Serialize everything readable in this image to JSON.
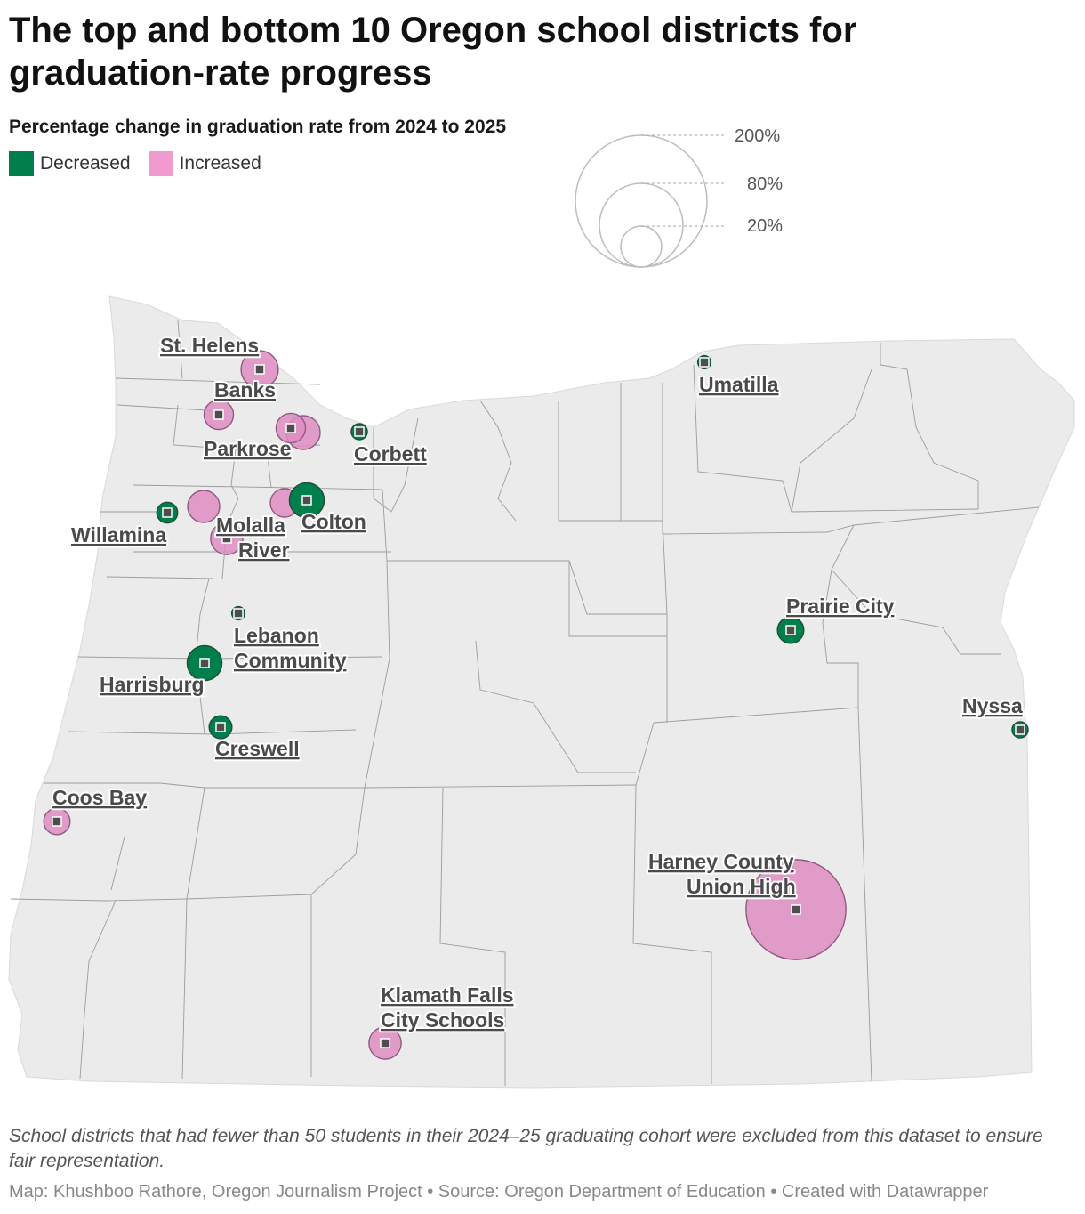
{
  "title": "The top and bottom 10 Oregon school districts for graduation-rate progress",
  "subtitle": "Percentage change in graduation rate from 2024 to 2025",
  "legend": {
    "decreased_label": "Decreased",
    "increased_label": "Increased",
    "decreased_color": "#007e4c",
    "increased_color": "#f09ad0"
  },
  "size_legend": {
    "ticks": [
      "200%",
      "80%",
      "20%"
    ],
    "values": [
      200,
      80,
      20
    ]
  },
  "colors": {
    "decreased": "#007e4c",
    "decreased_stroke": "#1c4f36",
    "increased": "#df8dc2",
    "increased_stroke": "#8f5a7e",
    "land": "#ebebeb",
    "county_lines": "#9c9c9c"
  },
  "districts": [
    {
      "name": "St. Helens",
      "change": "Increased",
      "magnitude_pct": 16
    },
    {
      "name": "Banks",
      "change": "Increased",
      "magnitude_pct": 10
    },
    {
      "name": "Parkrose",
      "change": "Increased",
      "magnitude_pct": 10
    },
    {
      "name": "Corbett",
      "change": "Decreased",
      "magnitude_pct": 3
    },
    {
      "name": "Umatilla",
      "change": "Decreased",
      "magnitude_pct": 2
    },
    {
      "name": "Willamina",
      "change": "Decreased",
      "magnitude_pct": 5
    },
    {
      "name": "Molalla River",
      "change": "Increased",
      "magnitude_pct": 12
    },
    {
      "name": "Colton",
      "change": "Decreased",
      "magnitude_pct": 14
    },
    {
      "name": "Lebanon Community",
      "change": "Decreased",
      "magnitude_pct": 2
    },
    {
      "name": "Harrisburg",
      "change": "Decreased",
      "magnitude_pct": 14
    },
    {
      "name": "Creswell",
      "change": "Decreased",
      "magnitude_pct": 6
    },
    {
      "name": "Prairie City",
      "change": "Decreased",
      "magnitude_pct": 8
    },
    {
      "name": "Nyssa",
      "change": "Decreased",
      "magnitude_pct": 3
    },
    {
      "name": "Coos Bay",
      "change": "Increased",
      "magnitude_pct": 8
    },
    {
      "name": "Harney County Union High",
      "change": "Increased",
      "magnitude_pct": 115
    },
    {
      "name": "Klamath Falls City Schools",
      "change": "Increased",
      "magnitude_pct": 12
    }
  ],
  "note": "School districts that had fewer than 50 students in their 2024–25 graduating cohort were excluded from this dataset to ensure fair representation.",
  "credit": "Map: Khushboo Rathore, Oregon Journalism Project • Source: Oregon Department of Education • Created with Datawrapper"
}
